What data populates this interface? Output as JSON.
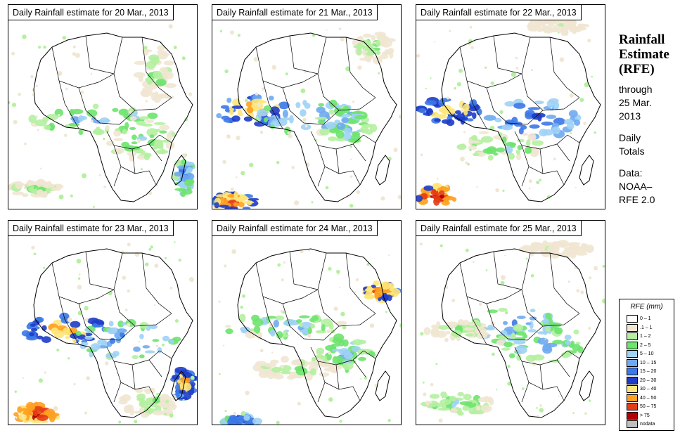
{
  "panels": [
    {
      "title": "Daily Rainfall estimate for  20 Mar., 2013"
    },
    {
      "title": "Daily Rainfall estimate for  21 Mar., 2013"
    },
    {
      "title": "Daily Rainfall estimate for  22 Mar., 2013"
    },
    {
      "title": "Daily Rainfall estimate for  23 Mar., 2013"
    },
    {
      "title": "Daily Rainfall estimate for  24 Mar., 2013"
    },
    {
      "title": "Daily Rainfall estimate for  25 Mar., 2013"
    }
  ],
  "side": {
    "title1": "Rainfall",
    "title2": "Estimate",
    "title3": "(RFE)",
    "through1": "through",
    "through2": "25 Mar.",
    "through3": "2013",
    "daily1": "Daily",
    "daily2": "Totals",
    "data1": "Data:",
    "data2": "NOAA–",
    "data3": "RFE 2.0"
  },
  "legend": {
    "title": "RFE (mm)",
    "items": [
      {
        "label": "0 – 1",
        "color": "#ffffff"
      },
      {
        "label": ".1 – 1",
        "color": "#f0e6d2"
      },
      {
        "label": "1 – 2",
        "color": "#b4f0a0"
      },
      {
        "label": "2 – 5",
        "color": "#6ee36e"
      },
      {
        "label": "5 – 10",
        "color": "#9fd2f5"
      },
      {
        "label": "10 – 15",
        "color": "#6eaaf0"
      },
      {
        "label": "15 – 20",
        "color": "#3c78e6"
      },
      {
        "label": "20 – 30",
        "color": "#1e3cc8"
      },
      {
        "label": "30 – 40",
        "color": "#ffe678"
      },
      {
        "label": "40 – 50",
        "color": "#ffa020"
      },
      {
        "label": "50 – 75",
        "color": "#e63c14"
      },
      {
        "label": "> 75",
        "color": "#b40000"
      },
      {
        "label": "nodata",
        "color": "#bebebe"
      }
    ]
  }
}
